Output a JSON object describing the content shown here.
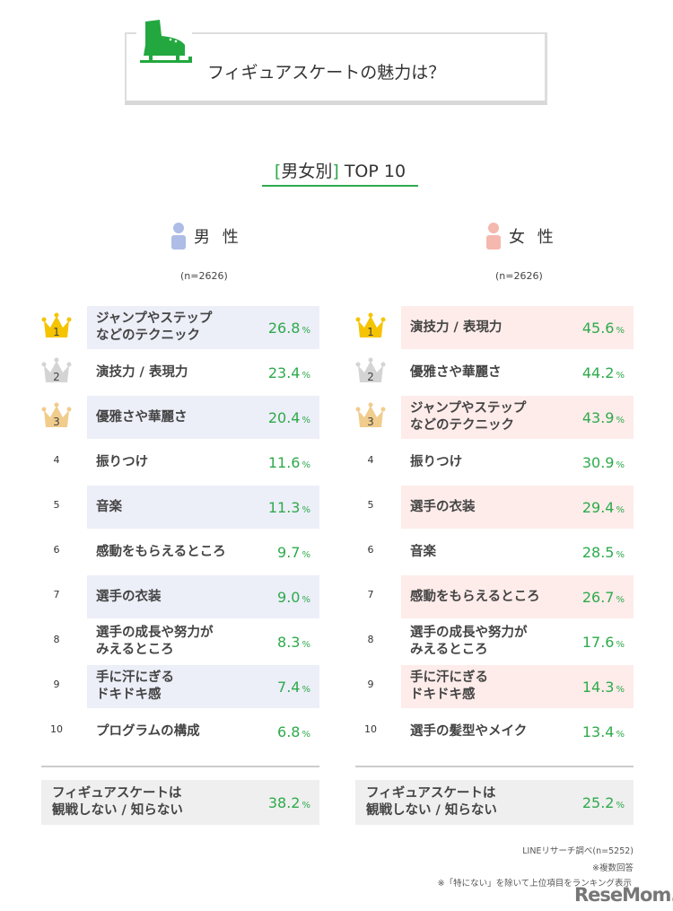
{
  "title": "フィギュアスケートの魅力は？",
  "subtitle": {
    "bracket_open": "[",
    "label": "男女別",
    "bracket_close": "]",
    "suffix": "TOP 10"
  },
  "colors": {
    "accent": "#2eaa4b",
    "male": "#aebde6",
    "female": "#f5b8ae",
    "male_band": "#eceef8",
    "female_band": "#fdecea"
  },
  "chart_data": {
    "type": "table",
    "unit": "%",
    "series": [
      {
        "name": "男 性",
        "n": "(n=2626)",
        "rows": [
          {
            "rank": "1",
            "label": "ジャンプやステップ\nなどのテクニック",
            "value": "26.8"
          },
          {
            "rank": "2",
            "label": "演技力 / 表現力",
            "value": "23.4"
          },
          {
            "rank": "3",
            "label": "優雅さや華麗さ",
            "value": "20.4"
          },
          {
            "rank": "4",
            "label": "振りつけ",
            "value": "11.6"
          },
          {
            "rank": "5",
            "label": "音楽",
            "value": "11.3"
          },
          {
            "rank": "6",
            "label": "感動をもらえるところ",
            "value": "9.7"
          },
          {
            "rank": "7",
            "label": "選手の衣装",
            "value": "9.0"
          },
          {
            "rank": "8",
            "label": "選手の成長や努力が\nみえるところ",
            "value": "8.3"
          },
          {
            "rank": "9",
            "label": "手に汗にぎる\nドキドキ感",
            "value": "7.4"
          },
          {
            "rank": "10",
            "label": "プログラムの構成",
            "value": "6.8"
          }
        ],
        "footer": {
          "label": "フィギュアスケートは\n観戦しない / 知らない",
          "value": "38.2"
        }
      },
      {
        "name": "女 性",
        "n": "(n=2626)",
        "rows": [
          {
            "rank": "1",
            "label": "演技力 / 表現力",
            "value": "45.6"
          },
          {
            "rank": "2",
            "label": "優雅さや華麗さ",
            "value": "44.2"
          },
          {
            "rank": "3",
            "label": "ジャンプやステップ\nなどのテクニック",
            "value": "43.9"
          },
          {
            "rank": "4",
            "label": "振りつけ",
            "value": "30.9"
          },
          {
            "rank": "5",
            "label": "選手の衣装",
            "value": "29.4"
          },
          {
            "rank": "6",
            "label": "音楽",
            "value": "28.5"
          },
          {
            "rank": "7",
            "label": "感動をもらえるところ",
            "value": "26.7"
          },
          {
            "rank": "8",
            "label": "選手の成長や努力が\nみえるところ",
            "value": "17.6"
          },
          {
            "rank": "9",
            "label": "手に汗にぎる\nドキドキ感",
            "value": "14.3"
          },
          {
            "rank": "10",
            "label": "選手の髪型やメイク",
            "value": "13.4"
          }
        ],
        "footer": {
          "label": "フィギュアスケートは\n観戦しない / 知らない",
          "value": "25.2"
        }
      }
    ]
  },
  "notes": [
    "LINEリサーチ調べ(n=5252)",
    "※複数回答",
    "※「特にない」を除いて上位項目をランキング表示"
  ],
  "logo": "ReseMom."
}
